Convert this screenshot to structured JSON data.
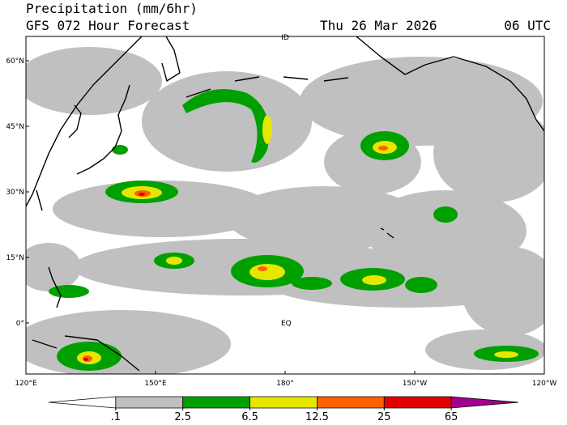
{
  "header": {
    "title": "Precipitation (mm/6hr)",
    "subtitle": "GFS 072 Hour Forecast",
    "date": "Thu 26 Mar 2026",
    "time": "06 UTC"
  },
  "map": {
    "lat_labels": [
      "60°N",
      "45°N",
      "30°N",
      "15°N",
      "0°"
    ],
    "lon_labels": [
      "120°E",
      "150°E",
      "180°",
      "150°W",
      "120°W"
    ],
    "annotations": [
      "ID",
      "EQ"
    ]
  },
  "legend": {
    "colors": [
      "#ffffff",
      "#c0c0c0",
      "#00a000",
      "#e6e600",
      "#ff6000",
      "#e00000",
      "#a0008c"
    ],
    "ticks": [
      {
        "value": 0.1,
        "label": ".1"
      },
      2.5,
      6.5,
      12.5,
      25,
      65
    ]
  }
}
